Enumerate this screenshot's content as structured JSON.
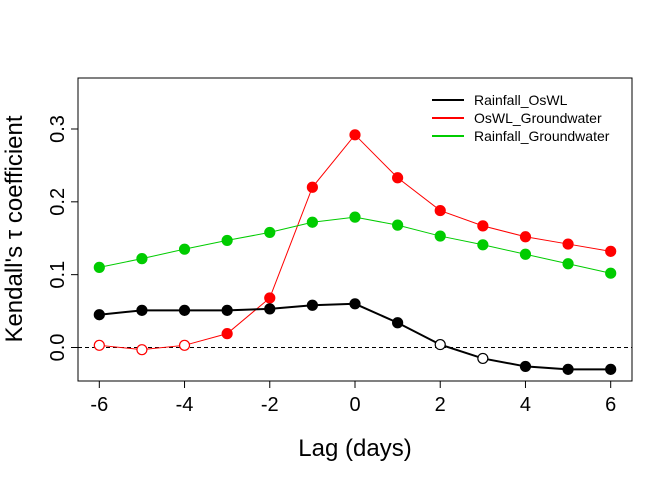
{
  "chart_data": {
    "type": "line",
    "title": "",
    "xlabel": "Lag (days)",
    "ylabel": "Kendall's τ coefficient",
    "x": [
      -6,
      -5,
      -4,
      -3,
      -2,
      -1,
      0,
      1,
      2,
      3,
      4,
      5,
      6
    ],
    "xlim": [
      -6.5,
      6.5
    ],
    "ylim": [
      -0.046,
      0.37
    ],
    "xticks": [
      -6,
      -4,
      -2,
      0,
      2,
      4,
      6
    ],
    "xtick_labels": [
      "-6",
      "-4",
      "-2",
      "0",
      "2",
      "4",
      "6"
    ],
    "yticks": [
      0.0,
      0.1,
      0.2,
      0.3
    ],
    "ytick_labels": [
      "0.0",
      "0.1",
      "0.2",
      "0.3"
    ],
    "reference_line": {
      "y": 0,
      "style": "dashed",
      "color": "#000000"
    },
    "legend_position": "top-right",
    "series": [
      {
        "name": "Rainfall_OsWL",
        "color": "#000000",
        "line_width": 2,
        "values": [
          0.045,
          0.051,
          0.051,
          0.051,
          0.053,
          0.058,
          0.06,
          0.034,
          0.004,
          -0.015,
          -0.026,
          -0.03,
          -0.03
        ],
        "filled": [
          true,
          true,
          true,
          true,
          true,
          true,
          true,
          true,
          false,
          false,
          true,
          true,
          true
        ]
      },
      {
        "name": "OsWL_Groundwater",
        "color": "#ff0000",
        "line_width": 1,
        "values": [
          0.003,
          -0.003,
          0.003,
          0.019,
          0.068,
          0.22,
          0.292,
          0.233,
          0.188,
          0.167,
          0.152,
          0.142,
          0.132
        ],
        "filled": [
          false,
          false,
          false,
          true,
          true,
          true,
          true,
          true,
          true,
          true,
          true,
          true,
          true
        ]
      },
      {
        "name": "Rainfall_Groundwater",
        "color": "#00cc00",
        "line_width": 1,
        "values": [
          0.11,
          0.122,
          0.135,
          0.147,
          0.158,
          0.172,
          0.179,
          0.168,
          0.153,
          0.141,
          0.128,
          0.115,
          0.102
        ],
        "filled": [
          true,
          true,
          true,
          true,
          true,
          true,
          true,
          true,
          true,
          true,
          true,
          true,
          true
        ]
      }
    ]
  }
}
